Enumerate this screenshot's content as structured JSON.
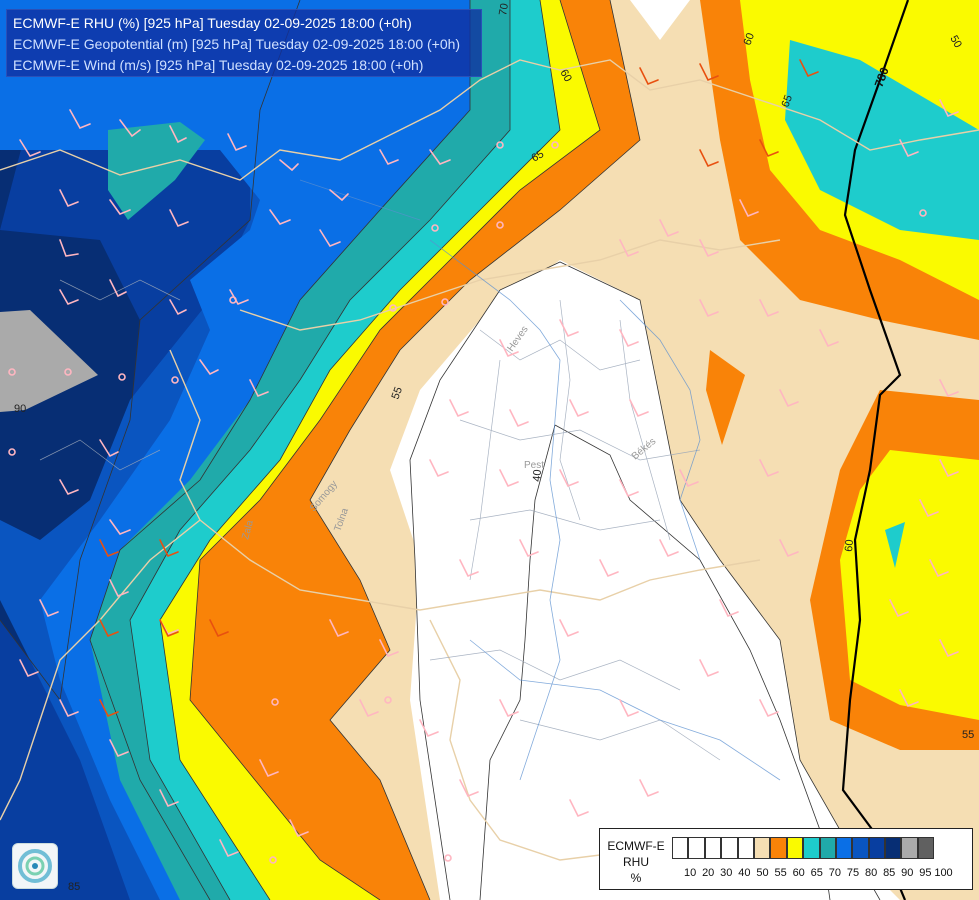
{
  "title": {
    "line1": "ECMWF-E RHU (%) [925 hPa] Tuesday 02-09-2025 18:00 (+0h)",
    "line2": "ECMWF-E Geopotential (m) [925 hPa] Tuesday 02-09-2025 18:00 (+0h)",
    "line3": "ECMWF-E Wind (m/s) [925 hPa] Tuesday 02-09-2025 18:00 (+0h)"
  },
  "legend": {
    "title_line1": "ECMWF-E",
    "title_line2": "RHU",
    "title_line3": "%",
    "colors": [
      "#ffffff",
      "#ffffff",
      "#ffffff",
      "#ffffff",
      "#ffffff",
      "#f5deb3",
      "#f98308",
      "#fafa00",
      "#1ecccc",
      "#20aaaa",
      "#0a6fe6",
      "#0a55c0",
      "#083ea0",
      "#072e74",
      "#aaaaaa",
      "#606060"
    ],
    "ticks": [
      "10",
      "20",
      "30",
      "40",
      "50",
      "55",
      "60",
      "65",
      "70",
      "75",
      "80",
      "85",
      "90",
      "95",
      "100"
    ]
  },
  "contour_labels": {
    "c70_top": "70",
    "c60_top": "60",
    "c65_upper": "65",
    "c60_right": "60",
    "c65_right": "65",
    "c50_right": "50",
    "c55_mid": "55",
    "c40_center": "40",
    "c60_east": "60",
    "c55_east": "55",
    "c90_west": "90",
    "c85_sw": "85"
  },
  "geopotential": {
    "label": "780"
  },
  "places": {
    "heves": "Heves",
    "pest": "Pest",
    "bekes": "Békés",
    "somogy": "Somogy",
    "tolna": "Tolna",
    "zala": "Zala"
  },
  "logo": {
    "icon": "ecmwf-swirl-icon"
  }
}
